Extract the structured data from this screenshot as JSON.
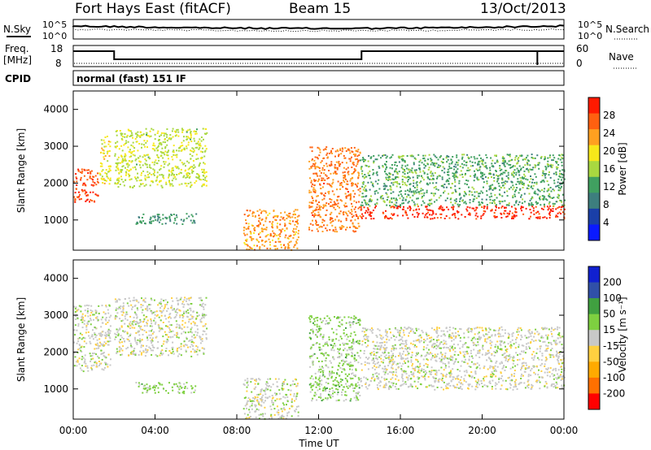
{
  "header": {
    "station": "Fort Hays East (fitACF)",
    "beam": "Beam 15",
    "date": "13/Oct/2013"
  },
  "noise_panel": {
    "left_label": "N.Sky",
    "right_label": "N.Search",
    "ticks": [
      "10^5",
      "10^0"
    ]
  },
  "freq_panel": {
    "left_label_line1": "Freq.",
    "left_label_line2": "[MHz]",
    "left_ticks": [
      "18",
      "8"
    ],
    "right_label": "Nave",
    "right_ticks": [
      "60",
      "0"
    ]
  },
  "cpid_panel": {
    "label": "CPID",
    "value": "normal (fast) 151 IF"
  },
  "colors": {
    "power_scale": [
      "#0a1aff",
      "#1a3fa8",
      "#3d7e7e",
      "#40a060",
      "#a8d840",
      "#f7e81a",
      "#ffa020",
      "#ff6010",
      "#ff1a00"
    ],
    "velocity_scale": [
      "#ff0000",
      "#ff7000",
      "#ffaa00",
      "#ffd040",
      "#c8c8c8",
      "#7ed040",
      "#40a040",
      "#3050a8",
      "#1020d0"
    ]
  },
  "chart_data": [
    {
      "type": "heatmap",
      "name": "power",
      "ylabel": "Slant Range [km]",
      "xlabel": "",
      "xlim": [
        0,
        24
      ],
      "ylim": [
        180,
        4500
      ],
      "xticks": [
        "00:00",
        "04:00",
        "08:00",
        "12:00",
        "16:00",
        "20:00",
        "00:00"
      ],
      "yticks": [
        1000,
        2000,
        3000,
        4000
      ],
      "colorbar": {
        "label": "Power [dB]",
        "ticks": [
          "4",
          "8",
          "12",
          "16",
          "20",
          "24",
          "28"
        ],
        "range": [
          0,
          30
        ]
      },
      "features": [
        {
          "t": [
            0.0,
            1.2
          ],
          "range": [
            1500,
            2400
          ],
          "value": 26
        },
        {
          "t": [
            1.2,
            1.8
          ],
          "range": [
            2000,
            3300
          ],
          "value": 18
        },
        {
          "t": [
            2.0,
            6.5
          ],
          "range": [
            1900,
            3500
          ],
          "value": 16
        },
        {
          "t": [
            3.0,
            6.0
          ],
          "range": [
            900,
            1200
          ],
          "value": 10
        },
        {
          "t": [
            8.3,
            11.0
          ],
          "range": [
            200,
            1300
          ],
          "value": 22
        },
        {
          "t": [
            11.5,
            14.0
          ],
          "range": [
            700,
            3000
          ],
          "value": 24
        },
        {
          "t": [
            14.0,
            24.0
          ],
          "range": [
            1050,
            1400
          ],
          "value": 28
        },
        {
          "t": [
            14.0,
            24.0
          ],
          "range": [
            1400,
            2800
          ],
          "value": 12
        }
      ]
    },
    {
      "type": "heatmap",
      "name": "velocity",
      "ylabel": "Slant Range [km]",
      "xlabel": "Time UT",
      "xlim": [
        0,
        24
      ],
      "ylim": [
        180,
        4500
      ],
      "xticks": [
        "00:00",
        "04:00",
        "08:00",
        "12:00",
        "16:00",
        "20:00",
        "00:00"
      ],
      "yticks": [
        1000,
        2000,
        3000,
        4000
      ],
      "colorbar": {
        "label": "Velocity [m s⁻¹]",
        "ticks": [
          "200",
          "100",
          "50",
          "15",
          "-15",
          "-50",
          "-100",
          "-200"
        ],
        "range": [
          -250,
          250
        ]
      },
      "features": [
        {
          "t": [
            0.0,
            1.8
          ],
          "range": [
            1500,
            3300
          ],
          "value": 0
        },
        {
          "t": [
            2.0,
            6.5
          ],
          "range": [
            1900,
            3500
          ],
          "value": 0
        },
        {
          "t": [
            3.0,
            6.0
          ],
          "range": [
            900,
            1200
          ],
          "value": 40
        },
        {
          "t": [
            8.3,
            11.0
          ],
          "range": [
            200,
            1300
          ],
          "value": 0
        },
        {
          "t": [
            11.5,
            14.0
          ],
          "range": [
            700,
            3000
          ],
          "value": 45
        },
        {
          "t": [
            14.0,
            24.0
          ],
          "range": [
            1000,
            2700
          ],
          "value": 0
        }
      ]
    }
  ]
}
